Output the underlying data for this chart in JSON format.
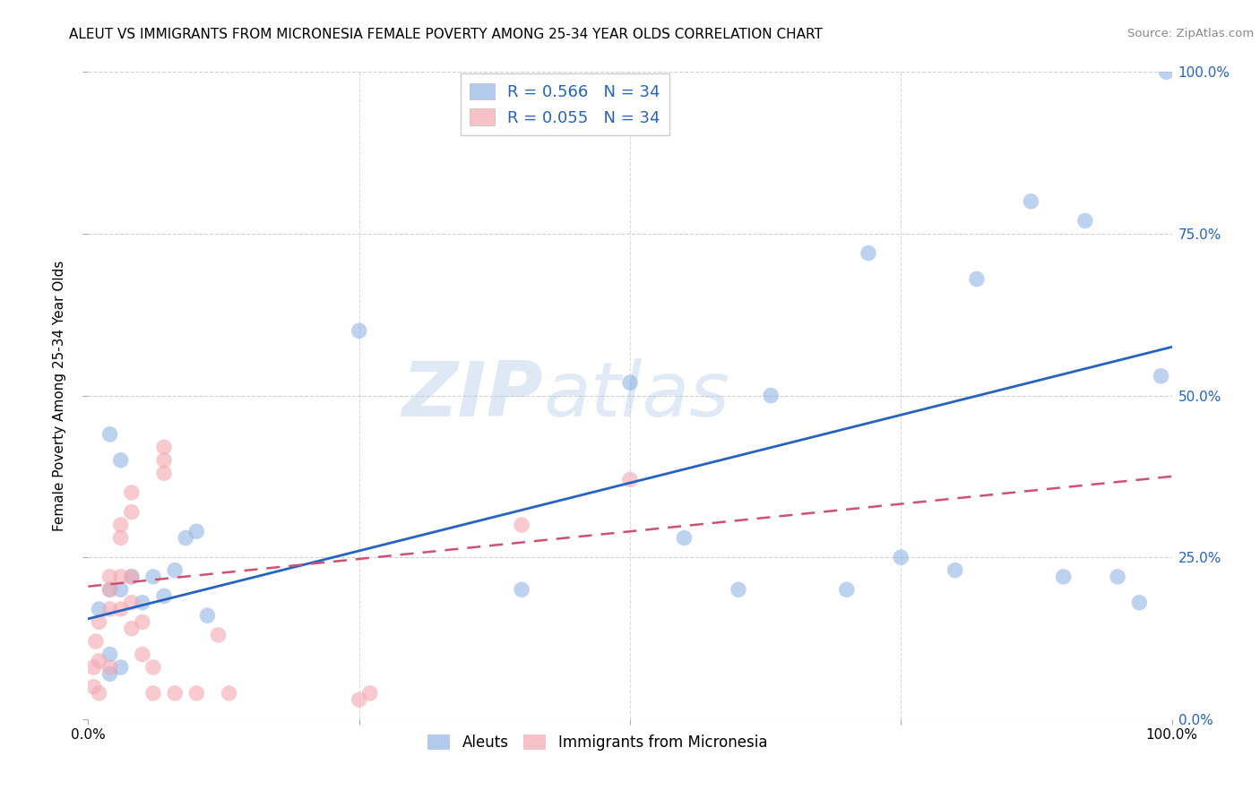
{
  "title": "ALEUT VS IMMIGRANTS FROM MICRONESIA FEMALE POVERTY AMONG 25-34 YEAR OLDS CORRELATION CHART",
  "source": "Source: ZipAtlas.com",
  "ylabel": "Female Poverty Among 25-34 Year Olds",
  "xlim": [
    0,
    1.0
  ],
  "ylim": [
    0,
    1.0
  ],
  "ytick_labels": [
    "0.0%",
    "25.0%",
    "50.0%",
    "75.0%",
    "100.0%"
  ],
  "ytick_positions": [
    0.0,
    0.25,
    0.5,
    0.75,
    1.0
  ],
  "legend_label1": "Aleuts",
  "legend_label2": "Immigrants from Micronesia",
  "blue_scatter_color": "#92B4E3",
  "pink_scatter_color": "#F4A8B0",
  "blue_line_color": "#2563C0",
  "pink_line_color": "#D05070",
  "watermark_color": "#C8D8F0",
  "background_color": "#FFFFFF",
  "grid_color": "#CCCCCC",
  "aleuts_x": [
    0.02,
    0.03,
    0.02,
    0.03,
    0.04,
    0.01,
    0.02,
    0.02,
    0.03,
    0.05,
    0.06,
    0.07,
    0.08,
    0.09,
    0.1,
    0.11,
    0.25,
    0.4,
    0.5,
    0.55,
    0.6,
    0.63,
    0.7,
    0.72,
    0.75,
    0.8,
    0.82,
    0.87,
    0.9,
    0.92,
    0.95,
    0.97,
    0.99,
    0.995
  ],
  "aleuts_y": [
    0.44,
    0.4,
    0.1,
    0.2,
    0.22,
    0.17,
    0.2,
    0.07,
    0.08,
    0.18,
    0.22,
    0.19,
    0.23,
    0.28,
    0.29,
    0.16,
    0.6,
    0.2,
    0.52,
    0.28,
    0.2,
    0.5,
    0.2,
    0.72,
    0.25,
    0.23,
    0.68,
    0.8,
    0.22,
    0.77,
    0.22,
    0.18,
    0.53,
    1.0
  ],
  "micronesia_x": [
    0.005,
    0.005,
    0.007,
    0.01,
    0.01,
    0.01,
    0.02,
    0.02,
    0.02,
    0.02,
    0.03,
    0.03,
    0.03,
    0.03,
    0.04,
    0.04,
    0.04,
    0.04,
    0.04,
    0.05,
    0.05,
    0.06,
    0.06,
    0.07,
    0.07,
    0.07,
    0.08,
    0.1,
    0.12,
    0.13,
    0.25,
    0.26,
    0.4,
    0.5
  ],
  "micronesia_y": [
    0.05,
    0.08,
    0.12,
    0.04,
    0.09,
    0.15,
    0.08,
    0.17,
    0.2,
    0.22,
    0.17,
    0.22,
    0.28,
    0.3,
    0.32,
    0.35,
    0.18,
    0.14,
    0.22,
    0.1,
    0.15,
    0.04,
    0.08,
    0.38,
    0.4,
    0.42,
    0.04,
    0.04,
    0.13,
    0.04,
    0.03,
    0.04,
    0.3,
    0.37
  ],
  "blue_line_x0": 0.0,
  "blue_line_y0": 0.155,
  "blue_line_x1": 1.0,
  "blue_line_y1": 0.575,
  "pink_line_x0": 0.0,
  "pink_line_y0": 0.205,
  "pink_line_x1": 1.0,
  "pink_line_y1": 0.375
}
